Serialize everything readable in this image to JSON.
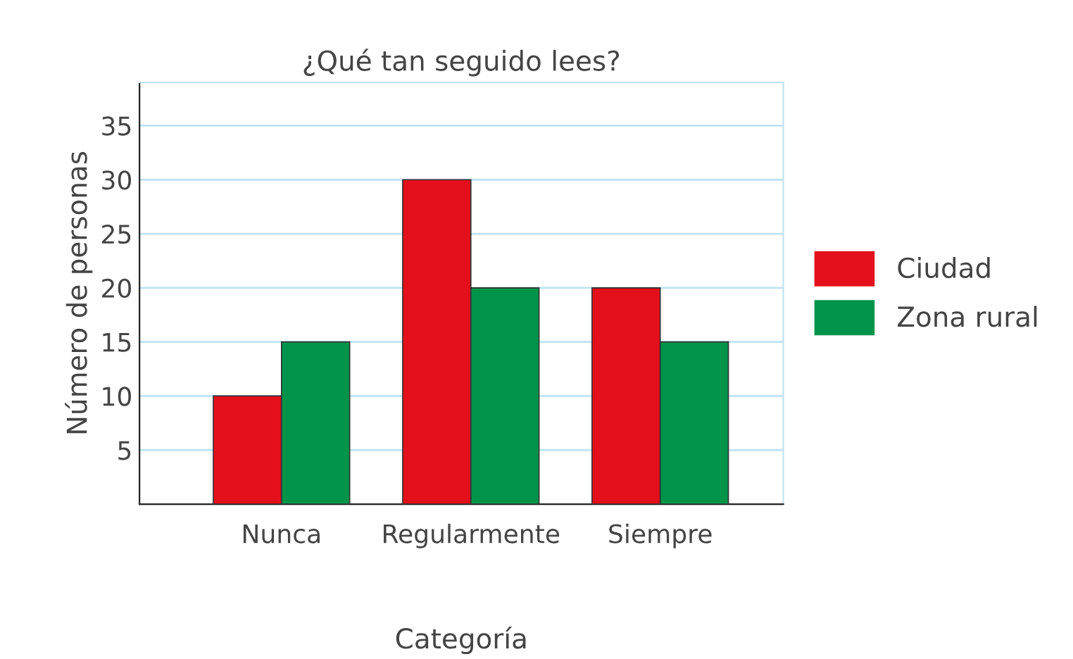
{
  "chart_data": {
    "type": "bar",
    "title": "¿Qué tan seguido lees?",
    "xlabel": "Categoría",
    "ylabel": "Número de personas",
    "categories": [
      "Nunca",
      "Regularmente",
      "Siempre"
    ],
    "series": [
      {
        "name": "Ciudad",
        "color": "#e30f1b",
        "values": [
          10,
          30,
          20
        ]
      },
      {
        "name": "Zona rural",
        "color": "#00944a",
        "values": [
          15,
          20,
          15
        ]
      }
    ],
    "ylim": [
      0,
      39
    ],
    "yticks": [
      5,
      10,
      15,
      20,
      25,
      30,
      35
    ],
    "grid": "y",
    "legend": "right"
  }
}
